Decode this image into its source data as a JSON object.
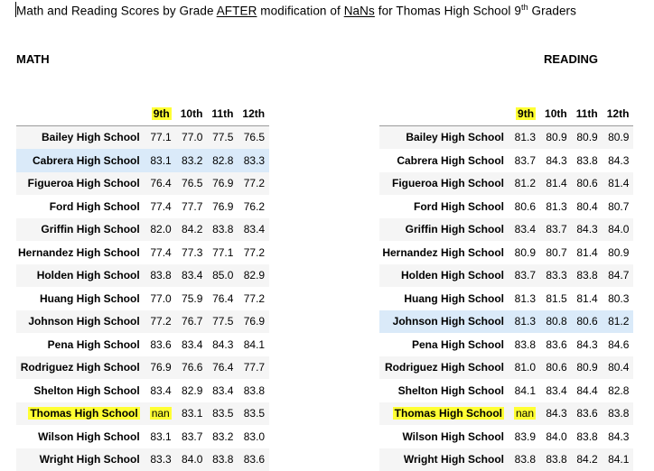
{
  "title": {
    "prefix": "Math and Reading Scores by Grade ",
    "after": "AFTER",
    "middle": " modification of ",
    "nans": "NaNs",
    "suffix1": " for Thomas High School 9",
    "sup": "th",
    "suffix2": " Graders"
  },
  "math": {
    "label": "MATH",
    "columns": [
      "9th",
      "10th",
      "11th",
      "12th"
    ],
    "rows": [
      {
        "school": "Bailey High School",
        "values": [
          "77.1",
          "77.0",
          "77.5",
          "76.5"
        ]
      },
      {
        "school": "Cabrera High School",
        "values": [
          "83.1",
          "83.2",
          "82.8",
          "83.3"
        ]
      },
      {
        "school": "Figueroa High School",
        "values": [
          "76.4",
          "76.5",
          "76.9",
          "77.2"
        ]
      },
      {
        "school": "Ford High School",
        "values": [
          "77.4",
          "77.7",
          "76.9",
          "76.2"
        ]
      },
      {
        "school": "Griffin High School",
        "values": [
          "82.0",
          "84.2",
          "83.8",
          "83.4"
        ]
      },
      {
        "school": "Hernandez High School",
        "values": [
          "77.4",
          "77.3",
          "77.1",
          "77.2"
        ]
      },
      {
        "school": "Holden High School",
        "values": [
          "83.8",
          "83.4",
          "85.0",
          "82.9"
        ]
      },
      {
        "school": "Huang High School",
        "values": [
          "77.0",
          "75.9",
          "76.4",
          "77.2"
        ]
      },
      {
        "school": "Johnson High School",
        "values": [
          "77.2",
          "76.7",
          "77.5",
          "76.9"
        ]
      },
      {
        "school": "Pena High School",
        "values": [
          "83.6",
          "83.4",
          "84.3",
          "84.1"
        ]
      },
      {
        "school": "Rodriguez High School",
        "values": [
          "76.9",
          "76.6",
          "76.4",
          "77.7"
        ]
      },
      {
        "school": "Shelton High School",
        "values": [
          "83.4",
          "82.9",
          "83.4",
          "83.8"
        ]
      },
      {
        "school": "Thomas High School",
        "values": [
          "nan",
          "83.1",
          "83.5",
          "83.5"
        ]
      },
      {
        "school": "Wilson High School",
        "values": [
          "83.1",
          "83.7",
          "83.2",
          "83.0"
        ]
      },
      {
        "school": "Wright High School",
        "values": [
          "83.3",
          "84.0",
          "83.8",
          "83.6"
        ]
      }
    ]
  },
  "reading": {
    "label": "READING",
    "columns": [
      "9th",
      "10th",
      "11th",
      "12th"
    ],
    "rows": [
      {
        "school": "Bailey High School",
        "values": [
          "81.3",
          "80.9",
          "80.9",
          "80.9"
        ]
      },
      {
        "school": "Cabrera High School",
        "values": [
          "83.7",
          "84.3",
          "83.8",
          "84.3"
        ]
      },
      {
        "school": "Figueroa High School",
        "values": [
          "81.2",
          "81.4",
          "80.6",
          "81.4"
        ]
      },
      {
        "school": "Ford High School",
        "values": [
          "80.6",
          "81.3",
          "80.4",
          "80.7"
        ]
      },
      {
        "school": "Griffin High School",
        "values": [
          "83.4",
          "83.7",
          "84.3",
          "84.0"
        ]
      },
      {
        "school": "Hernandez High School",
        "values": [
          "80.9",
          "80.7",
          "81.4",
          "80.9"
        ]
      },
      {
        "school": "Holden High School",
        "values": [
          "83.7",
          "83.3",
          "83.8",
          "84.7"
        ]
      },
      {
        "school": "Huang High School",
        "values": [
          "81.3",
          "81.5",
          "81.4",
          "80.3"
        ]
      },
      {
        "school": "Johnson High School",
        "values": [
          "81.3",
          "80.8",
          "80.6",
          "81.2"
        ]
      },
      {
        "school": "Pena High School",
        "values": [
          "83.8",
          "83.6",
          "84.3",
          "84.6"
        ]
      },
      {
        "school": "Rodriguez High School",
        "values": [
          "81.0",
          "80.6",
          "80.9",
          "80.4"
        ]
      },
      {
        "school": "Shelton High School",
        "values": [
          "84.1",
          "83.4",
          "84.4",
          "82.8"
        ]
      },
      {
        "school": "Thomas High School",
        "values": [
          "nan",
          "84.3",
          "83.6",
          "83.8"
        ]
      },
      {
        "school": "Wilson High School",
        "values": [
          "83.9",
          "84.0",
          "83.8",
          "84.3"
        ]
      },
      {
        "school": "Wright High School",
        "values": [
          "83.8",
          "83.8",
          "84.2",
          "84.1"
        ]
      }
    ]
  },
  "highlight_color": "#ffff33",
  "row_hover_color": "#daeaf9",
  "math_hover_row": 1,
  "reading_hover_row": 8,
  "highlight_school": "Thomas High School"
}
